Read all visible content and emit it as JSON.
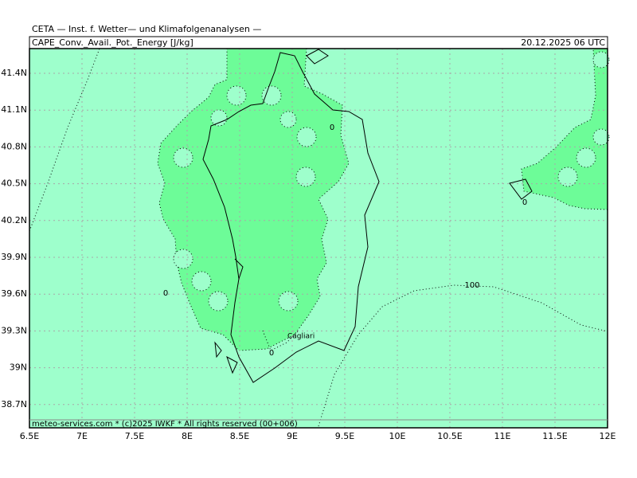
{
  "header": {
    "institute": "CETA — Inst. f. Wetter— und Klimafolgenanalysen —",
    "title": "CAPE_Conv._Avail._Pot._Energy [J/kg]",
    "datetime": "20.12.2025 06 UTC"
  },
  "axes": {
    "x_labels": [
      "6.5E",
      "7E",
      "7.5E",
      "8E",
      "8.5E",
      "9E",
      "9.5E",
      "10E",
      "10.5E",
      "11E",
      "11.5E",
      "12E"
    ],
    "y_labels": [
      "41.4N",
      "41.1N",
      "40.8N",
      "40.5N",
      "40.2N",
      "39.9N",
      "39.6N",
      "39.3N",
      "39N",
      "38.7N"
    ]
  },
  "contour_labels": [
    "0",
    "0",
    "0",
    "0",
    "100"
  ],
  "place_labels": [
    "Cagliari"
  ],
  "footer": "meteo-services.com * (c)2025 IWKF * All rights reserved (00+006)"
}
